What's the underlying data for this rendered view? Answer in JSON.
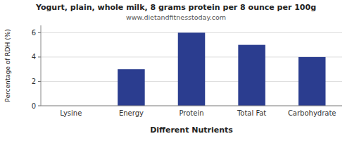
{
  "chart_data": {
    "type": "bar",
    "title": "Yogurt, plain, whole milk, 8 grams protein per 8 ounce per 100g",
    "subtitle": "www.dietandfitnesstoday.com",
    "categories": [
      "Lysine",
      "Energy",
      "Protein",
      "Total Fat",
      "Carbohydrate"
    ],
    "values": [
      0,
      3.0,
      6.0,
      5.0,
      4.0
    ],
    "color": "#2b3d8f",
    "xlabel": "Different Nutrients",
    "ylabel": "Percentage of RDH (%)",
    "ylim": [
      0,
      6.6
    ],
    "yticks": [
      0,
      2,
      4,
      6
    ],
    "grid": true
  }
}
